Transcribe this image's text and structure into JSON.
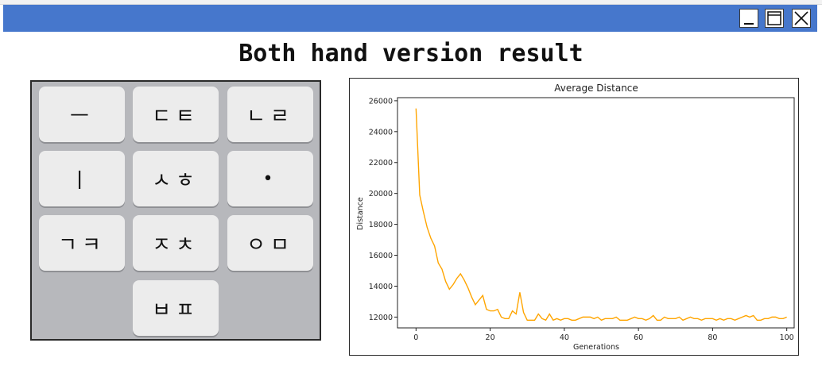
{
  "window": {
    "minimize_icon": "minimize-icon",
    "maximize_icon": "maximize-icon",
    "close_icon": "close-icon",
    "titlebar_color": "#4677cc"
  },
  "heading": "Both hand version result",
  "keyboard": {
    "keys": [
      {
        "label": "ㅡ"
      },
      {
        "label": "ㄷㅌ"
      },
      {
        "label": "ㄴㄹ"
      },
      {
        "label": "ㅣ"
      },
      {
        "label": "ㅅㅎ"
      },
      {
        "label": "•"
      },
      {
        "label": "ㄱㅋ"
      },
      {
        "label": "ㅈㅊ"
      },
      {
        "label": "ㅇㅁ"
      },
      {
        "label": "ㅂㅍ"
      }
    ]
  },
  "chart_data": {
    "type": "line",
    "title": "Average Distance",
    "xlabel": "Generations",
    "ylabel": "Distance",
    "xlim": [
      -5,
      102
    ],
    "ylim": [
      11300,
      26200
    ],
    "xticks": [
      0,
      20,
      40,
      60,
      80,
      100
    ],
    "yticks": [
      12000,
      14000,
      16000,
      18000,
      20000,
      22000,
      24000,
      26000
    ],
    "grid": false,
    "line_color": "#ffa500",
    "series": [
      {
        "values": [
          25500,
          19900,
          18800,
          17800,
          17100,
          16600,
          15500,
          15100,
          14300,
          13800,
          14100,
          14500,
          14800,
          14400,
          13900,
          13300,
          12800,
          13100,
          13400,
          12500,
          12400,
          12400,
          12500,
          12000,
          11900,
          11900,
          12400,
          12200,
          13600,
          12300,
          11800,
          11800,
          11800,
          12200,
          11900,
          11800,
          12200,
          11800,
          11900,
          11800,
          11900,
          11900,
          11800,
          11800,
          11900,
          12000,
          12000,
          12000,
          11900,
          12000,
          11800,
          11900,
          11900,
          11900,
          12000,
          11800,
          11800,
          11800,
          11900,
          12000,
          11900,
          11900,
          11800,
          11900,
          12100,
          11800,
          11800,
          12000,
          11900,
          11900,
          11900,
          12000,
          11800,
          11900,
          12000,
          11900,
          11900,
          11800,
          11900,
          11900,
          11900,
          11800,
          11900,
          11800,
          11900,
          11900,
          11800,
          11900,
          12000,
          12100,
          12000,
          12100,
          11800,
          11800,
          11900,
          11900,
          12000,
          12000,
          11900,
          11900,
          12000
        ]
      }
    ]
  }
}
